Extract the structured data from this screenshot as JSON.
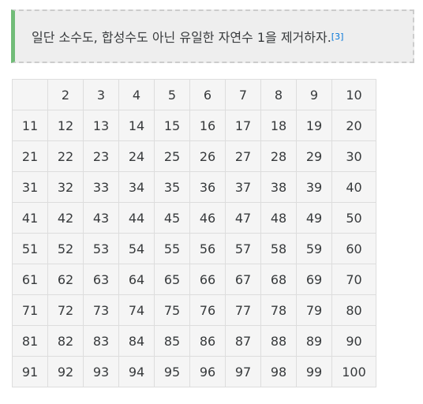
{
  "note": {
    "text": "일단 소수도, 합성수도 아닌 유일한 자연수 1을 제거하자.",
    "ref": "[3]",
    "accent_color": "#71bc78"
  },
  "table": {
    "rows": [
      [
        "",
        "2",
        "3",
        "4",
        "5",
        "6",
        "7",
        "8",
        "9",
        "10"
      ],
      [
        "11",
        "12",
        "13",
        "14",
        "15",
        "16",
        "17",
        "18",
        "19",
        "20"
      ],
      [
        "21",
        "22",
        "23",
        "24",
        "25",
        "26",
        "27",
        "28",
        "29",
        "30"
      ],
      [
        "31",
        "32",
        "33",
        "34",
        "35",
        "36",
        "37",
        "38",
        "39",
        "40"
      ],
      [
        "41",
        "42",
        "43",
        "44",
        "45",
        "46",
        "47",
        "48",
        "49",
        "50"
      ],
      [
        "51",
        "52",
        "53",
        "54",
        "55",
        "56",
        "57",
        "58",
        "59",
        "60"
      ],
      [
        "61",
        "62",
        "63",
        "64",
        "65",
        "66",
        "67",
        "68",
        "69",
        "70"
      ],
      [
        "71",
        "72",
        "73",
        "74",
        "75",
        "76",
        "77",
        "78",
        "79",
        "80"
      ],
      [
        "81",
        "82",
        "83",
        "84",
        "85",
        "86",
        "87",
        "88",
        "89",
        "90"
      ],
      [
        "91",
        "92",
        "93",
        "94",
        "95",
        "96",
        "97",
        "98",
        "99",
        "100"
      ]
    ]
  }
}
